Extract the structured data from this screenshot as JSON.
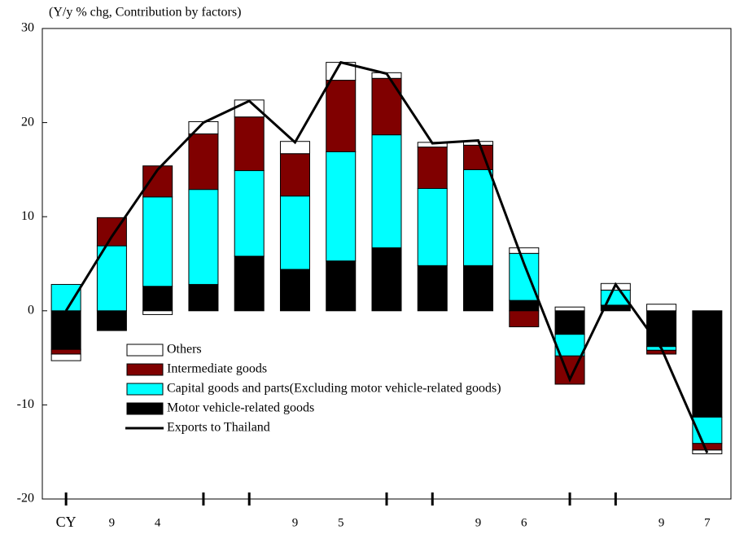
{
  "chart_data": {
    "type": "bar",
    "title": "(Y/y % chg, Contribution by factors)",
    "categories": [
      "CY",
      "9",
      "4",
      null,
      null,
      "9",
      "5",
      null,
      null,
      "9",
      "6",
      null,
      null,
      "9",
      "7"
    ],
    "stacked": true,
    "series": [
      {
        "name": "Others",
        "color": "#ffffff",
        "values": [
          -0.7,
          0,
          -0.4,
          1.3,
          1.8,
          1.3,
          1.9,
          0.6,
          0.5,
          0.4,
          0.6,
          0.4,
          0.7,
          0.7,
          -0.4
        ]
      },
      {
        "name": "Intermediate goods",
        "color": "#800000",
        "values": [
          -0.5,
          3.0,
          3.3,
          5.9,
          5.7,
          4.5,
          7.6,
          6.0,
          4.4,
          2.6,
          -1.7,
          -3.0,
          0,
          -0.4,
          -0.7
        ]
      },
      {
        "name": "Capital goods and parts(Excluding motor vehicle-related goods)",
        "color": "#00ffff",
        "values": [
          2.8,
          6.9,
          9.5,
          10.1,
          9.1,
          7.8,
          11.6,
          12.0,
          8.2,
          10.2,
          5.0,
          -2.3,
          1.6,
          -0.4,
          -2.8
        ]
      },
      {
        "name": "Motor vehicle-related goods",
        "color": "#000000",
        "values": [
          -4.1,
          -2.1,
          2.6,
          2.8,
          5.8,
          4.4,
          5.3,
          6.7,
          4.8,
          4.8,
          1.1,
          -2.5,
          0.6,
          -3.8,
          -11.3
        ]
      },
      {
        "name": "Exports to Thailand",
        "color": "#000000",
        "type": "line",
        "values": [
          0,
          7.9,
          15.0,
          20.0,
          22.3,
          17.9,
          26.4,
          25.2,
          17.8,
          18.1,
          5.0,
          -7.3,
          2.8,
          -4.0,
          -15.1
        ]
      }
    ],
    "ylim": [
      -20,
      30
    ],
    "yticks": [
      -20,
      -10,
      0,
      10,
      20,
      30
    ]
  }
}
